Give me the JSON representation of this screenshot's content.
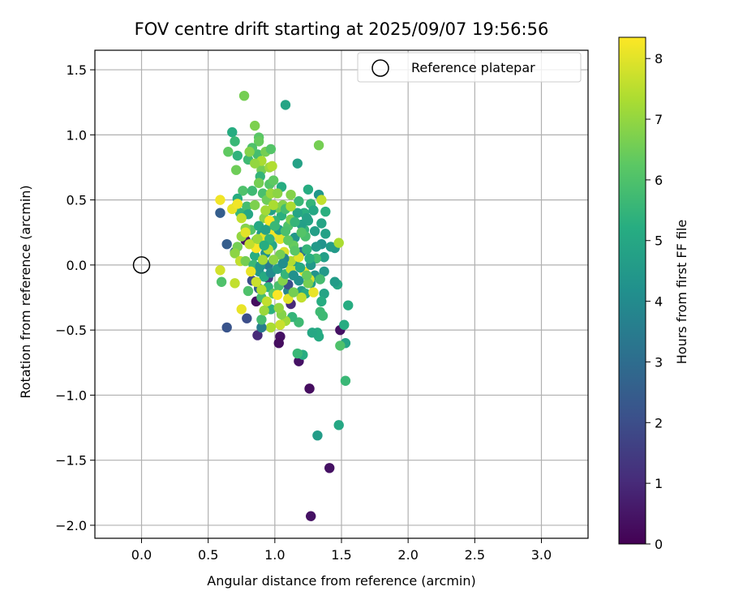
{
  "chart_data": {
    "type": "scatter",
    "title": "FOV centre drift starting at 2025/09/07 19:56:56",
    "xlabel": "Angular distance from reference (arcmin)",
    "ylabel": "Rotation from reference (arcmin)",
    "xlim": [
      -0.35,
      3.35
    ],
    "ylim": [
      -2.1,
      1.65
    ],
    "xticks": [
      "0.0",
      "0.5",
      "1.0",
      "1.5",
      "2.0",
      "2.5",
      "3.0"
    ],
    "yticks": [
      "−2.0",
      "−1.5",
      "−1.0",
      "−0.5",
      "0.0",
      "0.5",
      "1.0",
      "1.5"
    ],
    "grid": true,
    "legend": {
      "position": "top-right",
      "entries": [
        "Reference platepar"
      ]
    },
    "colorbar": {
      "label": "Hours from first FF file",
      "colormap": "viridis",
      "range": [
        0,
        8.35
      ],
      "ticks": [
        "0",
        "1",
        "2",
        "3",
        "4",
        "5",
        "6",
        "7",
        "8"
      ]
    },
    "reference_point": {
      "x": 0.0,
      "y": 0.0
    },
    "points": [
      [
        0.64,
        -0.48,
        2.2
      ],
      [
        0.59,
        0.4,
        2.5
      ],
      [
        0.64,
        0.16,
        2.5
      ],
      [
        0.79,
        -0.41,
        2.0
      ],
      [
        0.87,
        -0.54,
        1.0
      ],
      [
        0.86,
        -0.28,
        0.3
      ],
      [
        0.78,
        0.19,
        0.4
      ],
      [
        1.04,
        -0.55,
        0.4
      ],
      [
        1.03,
        -0.6,
        0.3
      ],
      [
        1.12,
        -0.3,
        1.0
      ],
      [
        1.18,
        -0.74,
        0.4
      ],
      [
        1.26,
        -0.95,
        0.3
      ],
      [
        1.41,
        -1.56,
        0.4
      ],
      [
        1.27,
        -1.93,
        0.4
      ],
      [
        1.49,
        -0.5,
        0.4
      ],
      [
        0.83,
        -0.12,
        2.0
      ],
      [
        0.88,
        -0.18,
        2.5
      ],
      [
        0.95,
        0.0,
        3.5
      ],
      [
        1.1,
        -0.2,
        3.8
      ],
      [
        1.2,
        0.1,
        3.2
      ],
      [
        0.95,
        -0.1,
        1.5
      ],
      [
        1.1,
        -0.15,
        2.0
      ],
      [
        0.7,
        0.1,
        2.8
      ],
      [
        1.32,
        -1.31,
        4.6
      ],
      [
        1.48,
        -1.23,
        5.0
      ],
      [
        1.53,
        -0.89,
        5.6
      ],
      [
        1.21,
        -0.69,
        5.2
      ],
      [
        1.17,
        -0.68,
        5.6
      ],
      [
        1.33,
        -0.55,
        5.1
      ],
      [
        1.53,
        -0.6,
        4.9
      ],
      [
        1.49,
        -0.62,
        6.0
      ],
      [
        1.52,
        -0.46,
        5.2
      ],
      [
        1.47,
        -0.15,
        5.0
      ],
      [
        1.55,
        -0.31,
        5.2
      ],
      [
        1.45,
        -0.13,
        4.6
      ],
      [
        1.45,
        0.13,
        4.5
      ],
      [
        1.37,
        0.06,
        4.7
      ],
      [
        1.37,
        -0.05,
        4.5
      ],
      [
        1.38,
        0.24,
        4.8
      ],
      [
        1.35,
        0.32,
        4.9
      ],
      [
        1.38,
        0.41,
        5.3
      ],
      [
        1.33,
        0.54,
        4.4
      ],
      [
        1.27,
        0.47,
        5.5
      ],
      [
        1.25,
        0.58,
        5.2
      ],
      [
        1.17,
        0.78,
        4.8
      ],
      [
        1.08,
        1.23,
        4.9
      ],
      [
        1.33,
        0.92,
        6.6
      ],
      [
        0.77,
        1.3,
        6.6
      ],
      [
        0.68,
        1.02,
        5.2
      ],
      [
        0.7,
        0.95,
        5.6
      ],
      [
        0.65,
        0.87,
        6.3
      ],
      [
        0.72,
        0.84,
        5.4
      ],
      [
        0.8,
        0.81,
        5.7
      ],
      [
        0.85,
        1.07,
        6.7
      ],
      [
        0.88,
        0.98,
        6.2
      ],
      [
        0.88,
        0.95,
        6.4
      ],
      [
        0.87,
        0.85,
        5.8
      ],
      [
        0.93,
        0.87,
        6.6
      ],
      [
        0.97,
        0.89,
        6.1
      ],
      [
        0.83,
        0.9,
        6.0
      ],
      [
        0.9,
        0.73,
        6.6
      ],
      [
        0.89,
        0.68,
        5.5
      ],
      [
        0.71,
        0.73,
        6.5
      ],
      [
        0.76,
        0.57,
        6.0
      ],
      [
        0.72,
        0.51,
        5.2
      ],
      [
        0.71,
        0.45,
        6.5
      ],
      [
        0.74,
        0.4,
        5.5
      ],
      [
        0.79,
        0.45,
        5.8
      ],
      [
        0.85,
        0.46,
        6.7
      ],
      [
        0.8,
        0.39,
        5.0
      ],
      [
        0.83,
        0.57,
        5.7
      ],
      [
        0.88,
        0.63,
        6.6
      ],
      [
        0.91,
        0.55,
        5.9
      ],
      [
        0.94,
        0.5,
        6.5
      ],
      [
        0.96,
        0.62,
        6.1
      ],
      [
        0.99,
        0.65,
        6.3
      ],
      [
        1.05,
        0.6,
        5.2
      ],
      [
        1.12,
        0.54,
        6.8
      ],
      [
        1.18,
        0.49,
        5.6
      ],
      [
        1.22,
        0.4,
        5.3
      ],
      [
        1.25,
        0.34,
        4.9
      ],
      [
        1.22,
        0.27,
        5.5
      ],
      [
        1.15,
        0.21,
        4.4
      ],
      [
        1.1,
        0.3,
        6.0
      ],
      [
        1.05,
        0.38,
        5.3
      ],
      [
        1.02,
        0.44,
        6.5
      ],
      [
        0.97,
        0.42,
        4.8
      ],
      [
        1.0,
        0.34,
        5.5
      ],
      [
        0.95,
        0.28,
        5.9
      ],
      [
        0.92,
        0.36,
        6.8
      ],
      [
        0.9,
        0.24,
        4.5
      ],
      [
        0.86,
        0.19,
        6.3
      ],
      [
        0.82,
        0.27,
        6.1
      ],
      [
        0.78,
        0.28,
        6.8
      ],
      [
        0.75,
        0.22,
        7.0
      ],
      [
        0.72,
        0.14,
        6.6
      ],
      [
        0.7,
        0.09,
        6.9
      ],
      [
        0.74,
        0.03,
        7.6
      ],
      [
        0.78,
        0.03,
        6.6
      ],
      [
        0.85,
        0.07,
        5.2
      ],
      [
        0.84,
        0.0,
        5.6
      ],
      [
        0.88,
        -0.05,
        4.5
      ],
      [
        0.92,
        -0.09,
        5.1
      ],
      [
        0.95,
        -0.17,
        5.4
      ],
      [
        0.99,
        -0.22,
        6.3
      ],
      [
        1.03,
        -0.16,
        5.9
      ],
      [
        1.06,
        -0.12,
        6.8
      ],
      [
        1.08,
        -0.07,
        5.5
      ],
      [
        1.12,
        -0.03,
        7.7
      ],
      [
        1.15,
        0.03,
        4.7
      ],
      [
        1.18,
        -0.12,
        4.2
      ],
      [
        1.2,
        -0.2,
        4.6
      ],
      [
        1.23,
        -0.22,
        5.2
      ],
      [
        1.27,
        -0.14,
        4.7
      ],
      [
        1.3,
        -0.08,
        4.3
      ],
      [
        1.34,
        -0.11,
        5.8
      ],
      [
        1.37,
        -0.22,
        4.9
      ],
      [
        1.35,
        -0.28,
        5.2
      ],
      [
        1.34,
        -0.36,
        5.7
      ],
      [
        1.36,
        -0.39,
        5.7
      ],
      [
        1.32,
        -0.52,
        5.1
      ],
      [
        1.28,
        -0.52,
        5.0
      ],
      [
        1.18,
        -0.44,
        5.7
      ],
      [
        1.13,
        -0.4,
        5.5
      ],
      [
        1.08,
        -0.43,
        7.2
      ],
      [
        1.04,
        -0.46,
        7.7
      ],
      [
        0.97,
        -0.34,
        5.3
      ],
      [
        0.97,
        -0.48,
        7.3
      ],
      [
        0.9,
        -0.48,
        3.5
      ],
      [
        0.9,
        -0.42,
        5.8
      ],
      [
        0.9,
        -0.25,
        5.8
      ],
      [
        0.8,
        -0.2,
        6.0
      ],
      [
        0.75,
        -0.34,
        8.1
      ],
      [
        0.7,
        -0.14,
        7.6
      ],
      [
        0.6,
        -0.13,
        6.0
      ],
      [
        0.59,
        -0.04,
        7.8
      ],
      [
        0.59,
        0.5,
        8.2
      ],
      [
        0.68,
        0.43,
        8.1
      ],
      [
        0.72,
        0.47,
        8.2
      ],
      [
        0.75,
        0.36,
        7.6
      ],
      [
        0.78,
        0.25,
        8.0
      ],
      [
        0.86,
        0.13,
        8.3
      ],
      [
        0.92,
        0.22,
        8.0
      ],
      [
        0.96,
        0.34,
        8.3
      ],
      [
        1.0,
        0.25,
        8.2
      ],
      [
        1.04,
        0.2,
        8.0
      ],
      [
        1.07,
        0.1,
        7.9
      ],
      [
        1.12,
        0.03,
        7.4
      ],
      [
        1.18,
        0.06,
        8.0
      ],
      [
        1.22,
        -0.05,
        8.1
      ],
      [
        1.26,
        -0.11,
        7.9
      ],
      [
        1.29,
        -0.21,
        8.1
      ],
      [
        1.2,
        -0.25,
        7.6
      ],
      [
        1.1,
        -0.26,
        8.0
      ],
      [
        1.02,
        -0.23,
        8.3
      ],
      [
        0.94,
        -0.28,
        7.6
      ],
      [
        0.9,
        -0.19,
        7.4
      ],
      [
        0.86,
        -0.13,
        7.7
      ],
      [
        0.82,
        -0.05,
        8.1
      ],
      [
        0.81,
        0.16,
        7.6
      ],
      [
        0.87,
        0.2,
        7.1
      ],
      [
        0.93,
        0.42,
        7.2
      ],
      [
        0.99,
        0.46,
        7.3
      ],
      [
        1.06,
        0.46,
        6.8
      ],
      [
        1.12,
        0.35,
        6.7
      ],
      [
        1.14,
        0.15,
        6.4
      ],
      [
        1.23,
        0.22,
        5.9
      ],
      [
        1.3,
        0.26,
        4.7
      ],
      [
        1.35,
        0.16,
        4.3
      ],
      [
        1.31,
        0.05,
        5.8
      ],
      [
        1.27,
        0.0,
        4.5
      ],
      [
        1.24,
        0.12,
        5.5
      ],
      [
        1.2,
        0.31,
        4.7
      ],
      [
        1.17,
        0.4,
        4.9
      ],
      [
        1.08,
        0.43,
        5.8
      ],
      [
        1.03,
        0.27,
        4.6
      ],
      [
        0.98,
        0.15,
        5.0
      ],
      [
        0.93,
        0.09,
        4.3
      ],
      [
        0.89,
        -0.01,
        4.4
      ],
      [
        0.97,
        -0.06,
        4.0
      ],
      [
        1.02,
        -0.03,
        4.6
      ],
      [
        1.07,
        0.05,
        3.8
      ],
      [
        1.14,
        -0.08,
        4.2
      ],
      [
        1.19,
        -0.02,
        5.1
      ],
      [
        1.26,
        0.05,
        5.3
      ],
      [
        1.31,
        0.14,
        4.5
      ],
      [
        1.42,
        0.14,
        4.6
      ],
      [
        1.48,
        0.17,
        7.3
      ],
      [
        1.35,
        0.5,
        7.6
      ],
      [
        1.29,
        0.42,
        5.0
      ],
      [
        1.24,
        0.36,
        4.8
      ],
      [
        1.2,
        0.25,
        6.1
      ],
      [
        1.15,
        0.33,
        5.5
      ],
      [
        1.1,
        0.19,
        6.3
      ],
      [
        1.04,
        0.08,
        6.6
      ],
      [
        0.99,
        0.04,
        6.9
      ],
      [
        0.95,
        0.12,
        7.5
      ],
      [
        0.91,
        0.04,
        7.2
      ],
      [
        0.97,
        0.55,
        7.1
      ],
      [
        1.02,
        0.55,
        6.9
      ],
      [
        1.12,
        0.45,
        7.3
      ],
      [
        1.25,
        -0.14,
        6.6
      ],
      [
        1.05,
        -0.38,
        6.8
      ],
      [
        0.92,
        -0.35,
        7.1
      ],
      [
        0.96,
        0.75,
        7.1
      ],
      [
        0.9,
        0.8,
        7.3
      ],
      [
        0.85,
        0.78,
        7.0
      ],
      [
        0.81,
        0.87,
        6.8
      ],
      [
        0.98,
        0.76,
        7.4
      ],
      [
        1.03,
        -0.33,
        7.0
      ],
      [
        1.14,
        -0.21,
        6.6
      ],
      [
        1.24,
        -0.08,
        6.4
      ],
      [
        1.15,
        0.11,
        6.2
      ],
      [
        1.08,
        0.26,
        5.9
      ],
      [
        1.0,
        0.3,
        5.6
      ],
      [
        0.96,
        0.2,
        5.4
      ],
      [
        0.92,
        0.15,
        5.2
      ],
      [
        0.88,
        0.3,
        5.0
      ],
      [
        0.93,
        0.27,
        4.8
      ],
      [
        1.06,
        0.01,
        4.1
      ]
    ]
  }
}
